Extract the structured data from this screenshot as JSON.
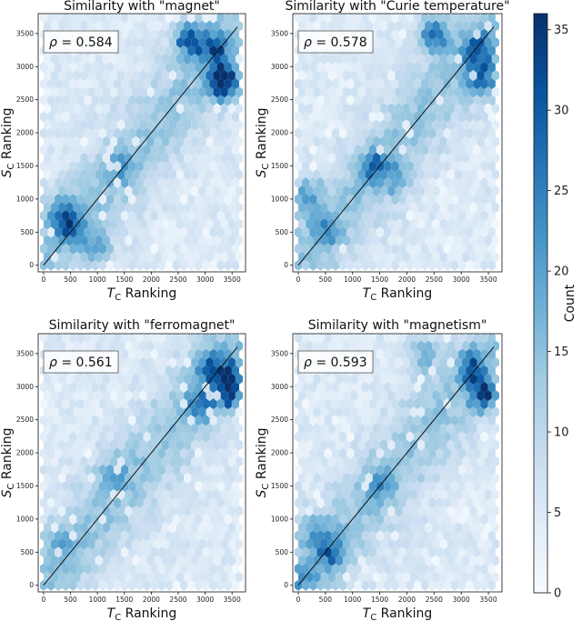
{
  "colorbar": {
    "label": "Count",
    "min": 0,
    "max": 36,
    "ticks": [
      0,
      5,
      10,
      15,
      20,
      25,
      30,
      35
    ]
  },
  "chart_data": [
    {
      "type": "hexbin",
      "title": "Similarity with \"magnet\"",
      "xlabel": "T_C Ranking",
      "ylabel": "S_C Ranking",
      "xlim": [
        -100,
        3750
      ],
      "ylim": [
        -100,
        3800
      ],
      "xticks": [
        0,
        500,
        1000,
        1500,
        2000,
        2500,
        3000,
        3500
      ],
      "yticks": [
        0,
        500,
        1000,
        1500,
        2000,
        2500,
        3000,
        3500
      ],
      "annotation": {
        "label": "ρ = 0.584",
        "rho": 0.584
      },
      "trend_line": {
        "from": [
          0,
          0
        ],
        "to": [
          3600,
          3600
        ]
      },
      "hotspots": [
        {
          "x": 2700,
          "y": 3400,
          "count": 33
        },
        {
          "x": 3200,
          "y": 3300,
          "count": 28
        },
        {
          "x": 3300,
          "y": 2800,
          "count": 30
        },
        {
          "x": 3400,
          "y": 2700,
          "count": 24
        },
        {
          "x": 300,
          "y": 800,
          "count": 22
        },
        {
          "x": 500,
          "y": 600,
          "count": 25
        },
        {
          "x": 1000,
          "y": 300,
          "count": 20
        },
        {
          "x": 1400,
          "y": 1500,
          "count": 18
        }
      ]
    },
    {
      "type": "hexbin",
      "title": "Similarity with \"Curie temperature\"",
      "xlabel": "T_C Ranking",
      "ylabel": "S_C Ranking",
      "xlim": [
        -100,
        3750
      ],
      "ylim": [
        -100,
        3800
      ],
      "xticks": [
        0,
        500,
        1000,
        1500,
        2000,
        2500,
        3000,
        3500
      ],
      "yticks": [
        0,
        500,
        1000,
        1500,
        2000,
        2500,
        3000,
        3500
      ],
      "annotation": {
        "label": "ρ = 0.578",
        "rho": 0.578
      },
      "trend_line": {
        "from": [
          0,
          0
        ],
        "to": [
          3600,
          3600
        ]
      },
      "hotspots": [
        {
          "x": 2500,
          "y": 3500,
          "count": 30
        },
        {
          "x": 3300,
          "y": 3300,
          "count": 32
        },
        {
          "x": 3400,
          "y": 2800,
          "count": 32
        },
        {
          "x": 1400,
          "y": 1500,
          "count": 22
        },
        {
          "x": 200,
          "y": 1000,
          "count": 25
        },
        {
          "x": 500,
          "y": 500,
          "count": 18
        },
        {
          "x": 1800,
          "y": 1300,
          "count": 16
        }
      ]
    },
    {
      "type": "hexbin",
      "title": "Similarity with \"ferromagnet\"",
      "xlabel": "T_C Ranking",
      "ylabel": "S_C Ranking",
      "xlim": [
        -100,
        3750
      ],
      "ylim": [
        -100,
        3800
      ],
      "xticks": [
        0,
        500,
        1000,
        1500,
        2000,
        2500,
        3000,
        3500
      ],
      "yticks": [
        0,
        500,
        1000,
        1500,
        2000,
        2500,
        3000,
        3500
      ],
      "annotation": {
        "label": "ρ = 0.561",
        "rho": 0.561
      },
      "trend_line": {
        "from": [
          0,
          0
        ],
        "to": [
          3600,
          3600
        ]
      },
      "hotspots": [
        {
          "x": 3100,
          "y": 3300,
          "count": 26
        },
        {
          "x": 3400,
          "y": 2900,
          "count": 34
        },
        {
          "x": 3500,
          "y": 3200,
          "count": 22
        },
        {
          "x": 2900,
          "y": 2700,
          "count": 20
        },
        {
          "x": 1300,
          "y": 1700,
          "count": 16
        },
        {
          "x": 300,
          "y": 600,
          "count": 14
        }
      ]
    },
    {
      "type": "hexbin",
      "title": "Similarity with \"magnetism\"",
      "xlabel": "T_C Ranking",
      "ylabel": "S_C Ranking",
      "xlim": [
        -100,
        3750
      ],
      "ylim": [
        -100,
        3800
      ],
      "xticks": [
        0,
        500,
        1000,
        1500,
        2000,
        2500,
        3000,
        3500
      ],
      "yticks": [
        0,
        500,
        1000,
        1500,
        2000,
        2500,
        3000,
        3500
      ],
      "annotation": {
        "label": "ρ = 0.593",
        "rho": 0.593
      },
      "trend_line": {
        "from": [
          0,
          0
        ],
        "to": [
          3600,
          3600
        ]
      },
      "hotspots": [
        {
          "x": 3400,
          "y": 2900,
          "count": 34
        },
        {
          "x": 3200,
          "y": 3300,
          "count": 26
        },
        {
          "x": 2300,
          "y": 3500,
          "count": 22
        },
        {
          "x": 600,
          "y": 500,
          "count": 24
        },
        {
          "x": 300,
          "y": 800,
          "count": 20
        },
        {
          "x": 1500,
          "y": 1500,
          "count": 18
        },
        {
          "x": 100,
          "y": 100,
          "count": 16
        }
      ]
    }
  ]
}
